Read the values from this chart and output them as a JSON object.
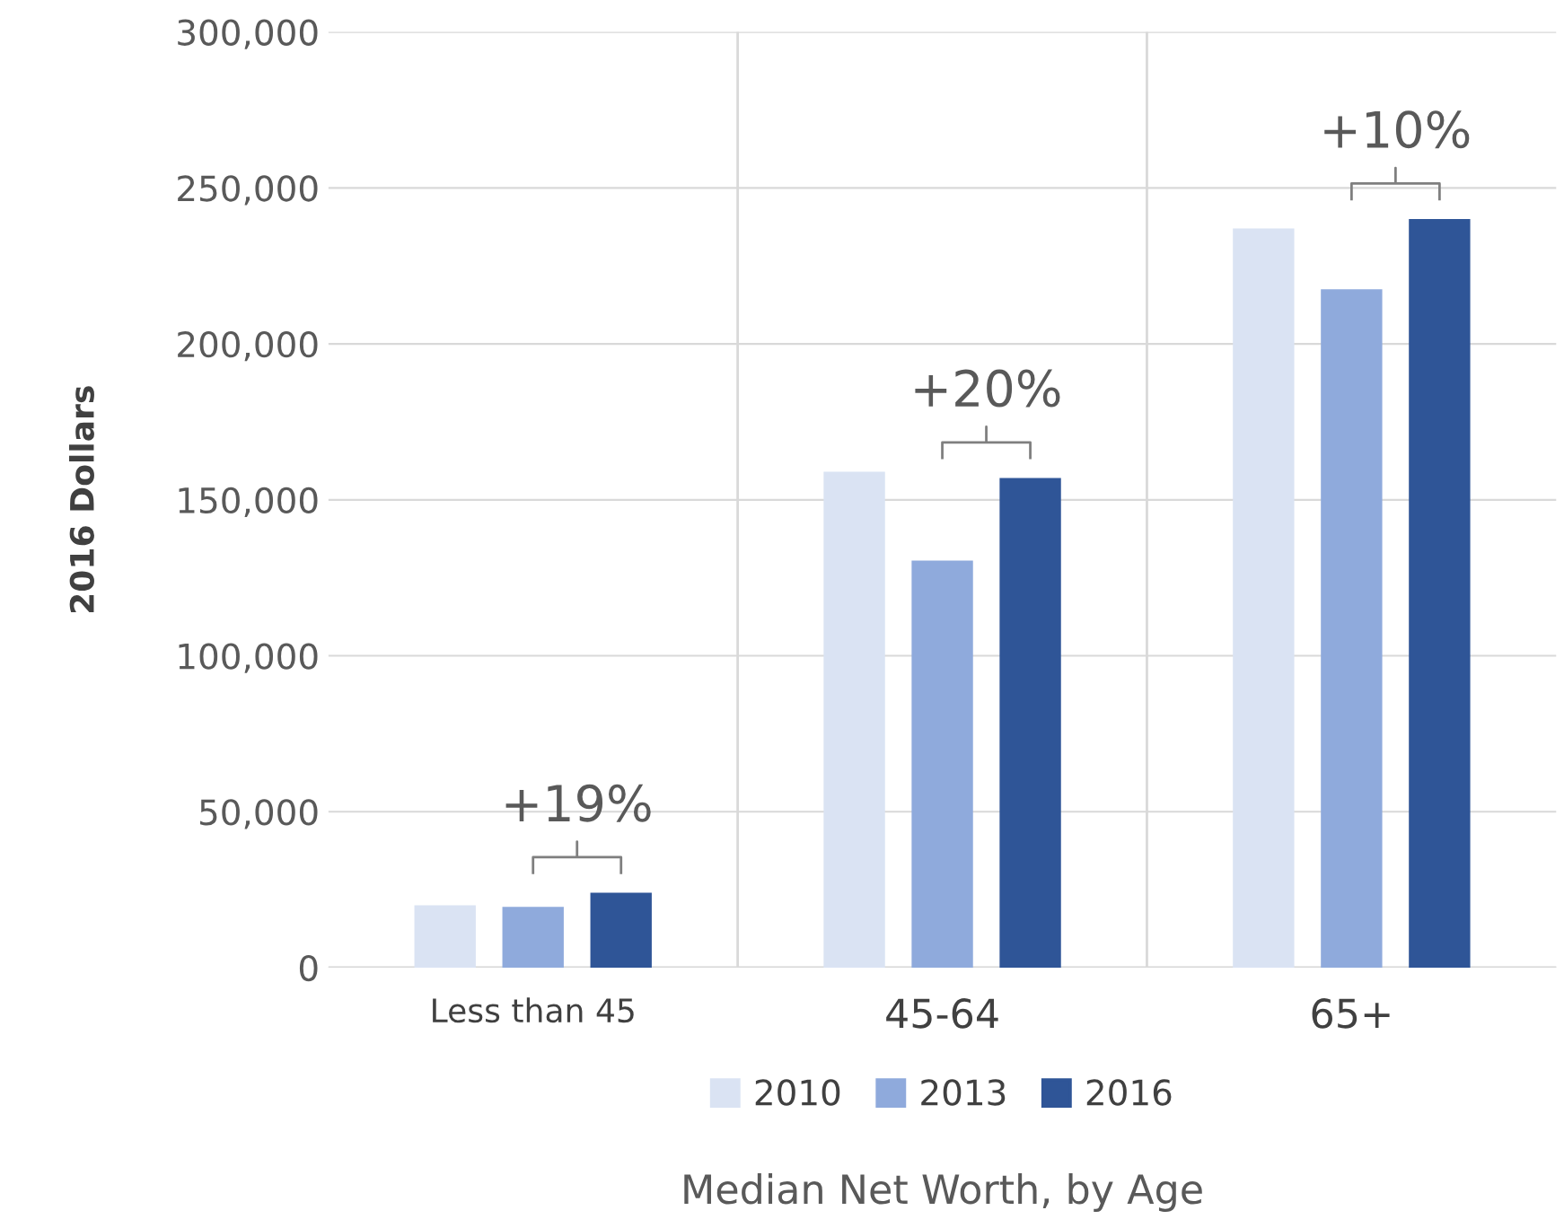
{
  "chart_data": {
    "type": "bar",
    "xlabel": "Median Net Worth, by Age",
    "ylabel": "2016 Dollars",
    "categories": [
      "Less than 45",
      "45-64",
      "65+"
    ],
    "series": [
      {
        "name": "2010",
        "color": "#dae3f3",
        "values": [
          20000,
          159000,
          237000
        ]
      },
      {
        "name": "2013",
        "color": "#8faadc",
        "values": [
          19500,
          130500,
          217500
        ]
      },
      {
        "name": "2016",
        "color": "#2f5597",
        "values": [
          24000,
          157000,
          240000
        ]
      }
    ],
    "ylim": [
      0,
      300000
    ],
    "yticks": [
      {
        "value": 0,
        "label": "0"
      },
      {
        "value": 50000,
        "label": "50,000"
      },
      {
        "value": 100000,
        "label": "100,000"
      },
      {
        "value": 150000,
        "label": "150,000"
      },
      {
        "value": 200000,
        "label": "200,000"
      },
      {
        "value": 250000,
        "label": "250,000"
      },
      {
        "value": 300000,
        "label": "300,000"
      }
    ],
    "grid": true,
    "legend": "bottom",
    "annotations": [
      "+19%",
      "+20%",
      "+10%"
    ]
  }
}
